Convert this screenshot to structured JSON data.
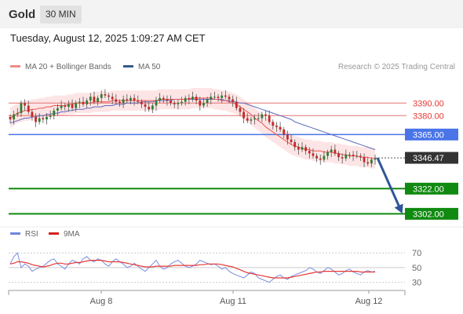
{
  "header": {
    "instrument": "Gold",
    "timeframe": "30 MIN",
    "datetime": "Tuesday, August 12, 2025 1:09:27 AM CET"
  },
  "legend": {
    "ma20_bb": "MA 20 + Bollinger Bands",
    "ma50": "MA 50",
    "rsi": "RSI",
    "rsi_ma": "9MA"
  },
  "copyright": "Research © 2025 Trading Central",
  "colors": {
    "bull": "#2e7d32",
    "bear": "#c62828",
    "ma20": "#ef5350",
    "bollinger_fill": "#fde0e0",
    "ma50": "#5c6bc0",
    "resistance": "#e57373",
    "pivot": "#4a74e8",
    "support": "#108a10",
    "price_tag": "#333333",
    "arrow": "#2f5597",
    "rsi": "#7b8ce0",
    "rsi_ma": "#e53935"
  },
  "chart_data": [
    {
      "type": "candlestick",
      "x_ticks": [
        "Aug 8",
        "Aug 11",
        "Aug 12"
      ],
      "ylim": [
        3296,
        3412
      ],
      "levels": [
        {
          "label": "3390.00",
          "value": 3390,
          "kind": "resistance"
        },
        {
          "label": "3380.00",
          "value": 3380,
          "kind": "resistance"
        },
        {
          "label": "3365.00",
          "value": 3365,
          "kind": "pivot"
        },
        {
          "label": "3322.00",
          "value": 3322,
          "kind": "support"
        },
        {
          "label": "3302.00",
          "value": 3302,
          "kind": "support"
        }
      ],
      "last_price": {
        "label": "3346.47",
        "value": 3346.47
      },
      "forecast_target": 3302,
      "closes": [
        3377,
        3381,
        3382,
        3390,
        3388,
        3383,
        3379,
        3375,
        3378,
        3377,
        3379,
        3380,
        3384,
        3386,
        3388,
        3387,
        3389,
        3386,
        3390,
        3391,
        3389,
        3392,
        3395,
        3391,
        3394,
        3397,
        3396,
        3395,
        3393,
        3391,
        3390,
        3393,
        3392,
        3394,
        3392,
        3391,
        3389,
        3387,
        3385,
        3388,
        3392,
        3394,
        3393,
        3392,
        3390,
        3389,
        3390,
        3391,
        3394,
        3393,
        3395,
        3392,
        3388,
        3390,
        3393,
        3395,
        3395,
        3394,
        3396,
        3395,
        3393,
        3391,
        3386,
        3383,
        3378,
        3376,
        3377,
        3378,
        3378,
        3381,
        3380,
        3375,
        3372,
        3371,
        3369,
        3365,
        3361,
        3359,
        3355,
        3353,
        3355,
        3352,
        3350,
        3348,
        3346,
        3345,
        3348,
        3351,
        3353,
        3350,
        3347,
        3346,
        3349,
        3349,
        3348,
        3348,
        3347,
        3343,
        3342,
        3345,
        3346
      ],
      "ma20": [
        3378,
        3380,
        3382,
        3383,
        3384,
        3384,
        3385,
        3385,
        3386,
        3386,
        3387,
        3387,
        3388,
        3388,
        3388,
        3388,
        3389,
        3389,
        3390,
        3390,
        3390,
        3390,
        3390,
        3391,
        3391,
        3391,
        3391,
        3391,
        3392,
        3392,
        3392,
        3392,
        3392,
        3392,
        3392,
        3392,
        3392,
        3392,
        3392,
        3392,
        3392,
        3393,
        3393,
        3393,
        3393,
        3393,
        3393,
        3393,
        3393,
        3393,
        3394,
        3394,
        3394,
        3394,
        3394,
        3394,
        3393,
        3393,
        3392,
        3392,
        3391,
        3390,
        3389,
        3387,
        3385,
        3383,
        3381,
        3378,
        3376,
        3374,
        3371,
        3369,
        3367,
        3365,
        3363,
        3361,
        3359,
        3357,
        3356,
        3355,
        3354,
        3353,
        3353,
        3352,
        3352,
        3352,
        3351,
        3351,
        3351,
        3350,
        3350,
        3349,
        3349,
        3348,
        3348,
        3348,
        3347,
        3347,
        3347,
        3346,
        3346
      ],
      "ma50": [
        3374,
        3375,
        3376,
        3377,
        3378,
        3378,
        3379,
        3379,
        3380,
        3380,
        3381,
        3381,
        3382,
        3382,
        3383,
        3383,
        3384,
        3384,
        3385,
        3385,
        3385,
        3386,
        3386,
        3387,
        3387,
        3387,
        3388,
        3388,
        3388,
        3389,
        3389,
        3389,
        3390,
        3390,
        3390,
        3390,
        3391,
        3391,
        3391,
        3391,
        3392,
        3392,
        3392,
        3392,
        3392,
        3393,
        3393,
        3393,
        3393,
        3393,
        3393,
        3393,
        3393,
        3393,
        3393,
        3393,
        3393,
        3393,
        3393,
        3392,
        3392,
        3391,
        3391,
        3390,
        3390,
        3389,
        3388,
        3387,
        3386,
        3385,
        3384,
        3383,
        3382,
        3381,
        3380,
        3379,
        3378,
        3377,
        3375,
        3374,
        3373,
        3372,
        3371,
        3370,
        3369,
        3368,
        3367,
        3366,
        3365,
        3364,
        3363,
        3362,
        3361,
        3360,
        3359,
        3358,
        3357,
        3356,
        3355,
        3354,
        3353
      ]
    },
    {
      "type": "line",
      "title": "RSI",
      "ylim": [
        20,
        82
      ],
      "y_ticks": [
        70,
        50,
        30
      ],
      "series": [
        {
          "name": "RSI",
          "values": [
            55,
            65,
            70,
            50,
            55,
            52,
            45,
            48,
            50,
            52,
            56,
            60,
            62,
            55,
            52,
            48,
            55,
            60,
            58,
            55,
            62,
            65,
            60,
            58,
            62,
            60,
            55,
            52,
            58,
            62,
            58,
            55,
            50,
            52,
            56,
            52,
            48,
            45,
            50,
            55,
            60,
            52,
            48,
            50,
            55,
            58,
            60,
            56,
            52,
            50,
            52,
            55,
            60,
            58,
            56,
            54,
            55,
            52,
            48,
            50,
            45,
            42,
            40,
            38,
            36,
            40,
            44,
            42,
            36,
            34,
            32,
            30,
            34,
            38,
            40,
            36,
            34,
            38,
            40,
            42,
            44,
            46,
            50,
            48,
            44,
            42,
            46,
            50,
            48,
            44,
            40,
            42,
            46,
            48,
            44,
            42,
            40,
            44,
            46,
            44,
            45
          ]
        },
        {
          "name": "9MA",
          "values": [
            55,
            56,
            58,
            58,
            57,
            56,
            54,
            53,
            52,
            51,
            52,
            53,
            55,
            56,
            56,
            55,
            55,
            56,
            57,
            57,
            58,
            59,
            60,
            60,
            60,
            60,
            59,
            58,
            58,
            58,
            58,
            57,
            56,
            55,
            54,
            53,
            52,
            51,
            51,
            51,
            52,
            52,
            52,
            52,
            52,
            53,
            53,
            53,
            53,
            53,
            53,
            53,
            54,
            54,
            55,
            55,
            55,
            55,
            54,
            53,
            52,
            51,
            49,
            47,
            45,
            43,
            42,
            41,
            40,
            39,
            38,
            37,
            36,
            36,
            36,
            36,
            36,
            37,
            38,
            39,
            40,
            41,
            42,
            43,
            44,
            44,
            45,
            45,
            45,
            45,
            45,
            45,
            45,
            45,
            45,
            45,
            44,
            44,
            44,
            44,
            44
          ]
        }
      ]
    }
  ]
}
